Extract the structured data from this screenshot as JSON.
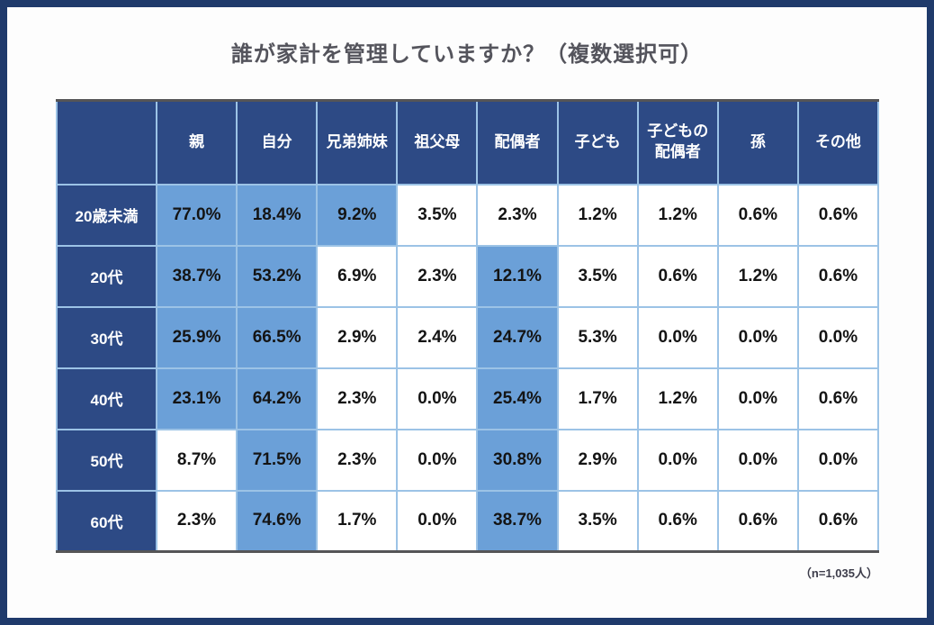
{
  "title": "誰が家計を管理していますか？（複数選択可）",
  "footnote": "（n=1,035人）",
  "colors": {
    "frame_border": "#1F3A6B",
    "header_bg": "#2D4A85",
    "highlight_bg": "#6BA0D8",
    "cell_border": "#9CC3E6",
    "table_edge": "#555557",
    "title_text": "#54545c",
    "value_text": "#141414"
  },
  "chart_data": {
    "type": "table",
    "title": "誰が家計を管理していますか？（複数選択可）",
    "columns": [
      "親",
      "自分",
      "兄弟姉妹",
      "祖父母",
      "配偶者",
      "子ども",
      "子どもの配偶者",
      "孫",
      "その他"
    ],
    "columns_display": [
      "親",
      "自分",
      "兄弟姉妹",
      "祖父母",
      "配偶者",
      "子ども",
      "子どもの\n配偶者",
      "孫",
      "その他"
    ],
    "rows": [
      "20歳未満",
      "20代",
      "30代",
      "40代",
      "50代",
      "60代"
    ],
    "values": [
      [
        77.0,
        18.4,
        9.2,
        3.5,
        2.3,
        1.2,
        1.2,
        0.6,
        0.6
      ],
      [
        38.7,
        53.2,
        6.9,
        2.3,
        12.1,
        3.5,
        0.6,
        1.2,
        0.6
      ],
      [
        25.9,
        66.5,
        2.9,
        2.4,
        24.7,
        5.3,
        0.0,
        0.0,
        0.0
      ],
      [
        23.1,
        64.2,
        2.3,
        0.0,
        25.4,
        1.7,
        1.2,
        0.0,
        0.6
      ],
      [
        8.7,
        71.5,
        2.3,
        0.0,
        30.8,
        2.9,
        0.0,
        0.0,
        0.0
      ],
      [
        2.3,
        74.6,
        1.7,
        0.0,
        38.7,
        3.5,
        0.6,
        0.6,
        0.6
      ]
    ],
    "unit": "%",
    "value_decimals": 1,
    "highlight_threshold": 9.0,
    "sample_note": "（n=1,035人）"
  }
}
